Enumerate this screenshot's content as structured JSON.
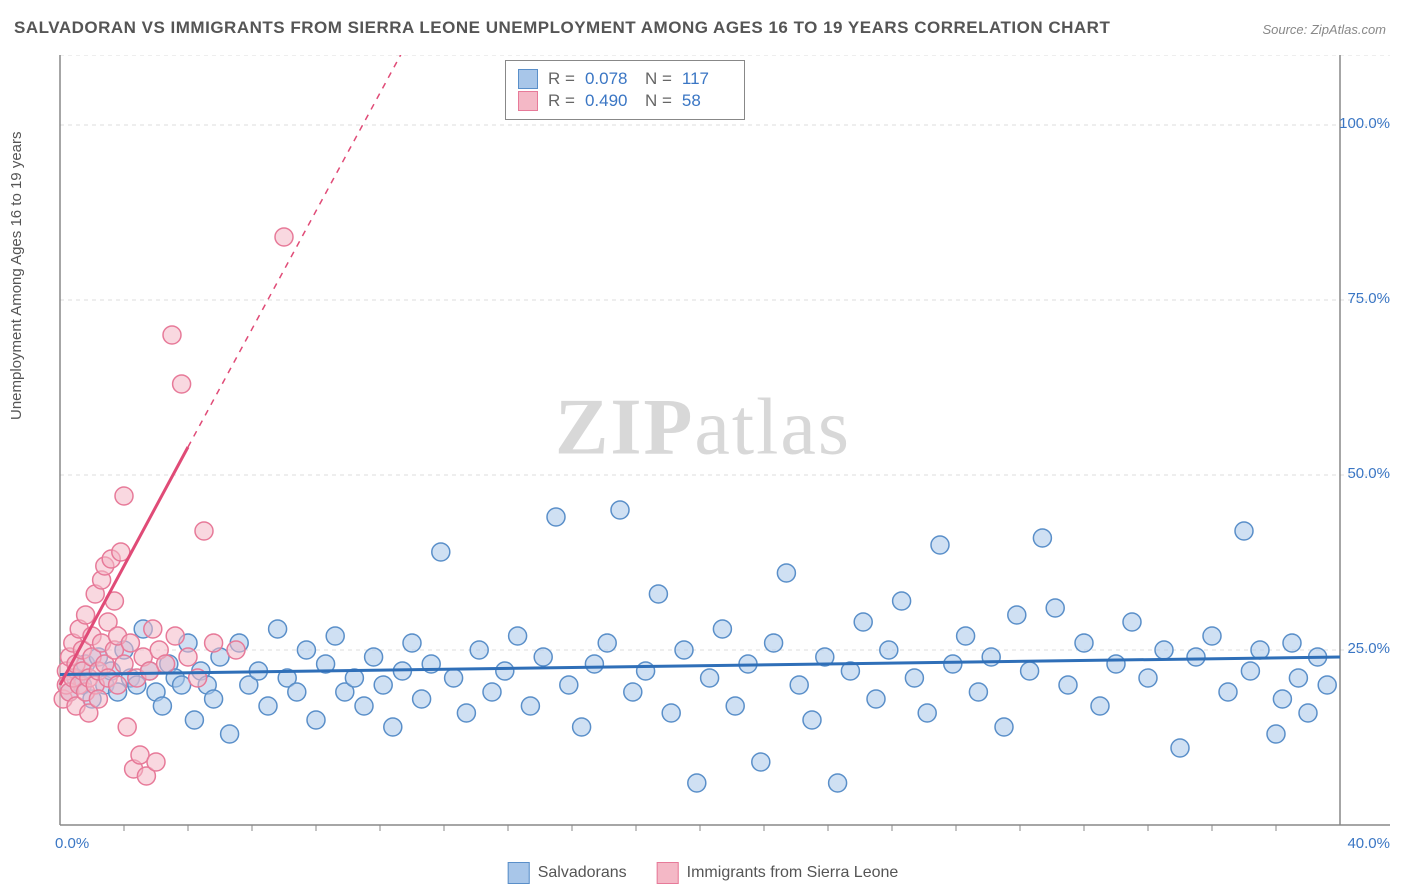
{
  "title": "SALVADORAN VS IMMIGRANTS FROM SIERRA LEONE UNEMPLOYMENT AMONG AGES 16 TO 19 YEARS CORRELATION CHART",
  "source": "Source: ZipAtlas.com",
  "watermark_a": "ZIP",
  "watermark_b": "atlas",
  "y_axis_label": "Unemployment Among Ages 16 to 19 years",
  "chart": {
    "type": "scatter",
    "background_color": "#ffffff",
    "grid_color": "#dddddd",
    "axis_color": "#888888",
    "xlim": [
      0,
      40
    ],
    "ylim": [
      0,
      110
    ],
    "x_ticks": [
      {
        "val": 0.0,
        "label": "0.0%"
      },
      {
        "val": 40.0,
        "label": "40.0%"
      }
    ],
    "y_ticks": [
      {
        "val": 25.0,
        "label": "25.0%"
      },
      {
        "val": 50.0,
        "label": "50.0%"
      },
      {
        "val": 75.0,
        "label": "75.0%"
      },
      {
        "val": 100.0,
        "label": "100.0%"
      }
    ],
    "y_gridlines": [
      25.0,
      50.0,
      75.0,
      100.0,
      110.0
    ],
    "marker_radius": 9,
    "marker_stroke_width": 1.5,
    "trend_line_width": 3,
    "series": [
      {
        "name": "Salvadorans",
        "fill": "#a8c6e9",
        "stroke": "#5a8fc9",
        "fill_opacity": 0.55,
        "trend_color": "#2f6fb8",
        "trend_start": {
          "x": 0.0,
          "y": 21.5
        },
        "trend_end": {
          "x": 40.0,
          "y": 24.0
        },
        "R_label": "R =",
        "R_value": "0.078",
        "N_label": "N =",
        "N_value": "117",
        "points": [
          {
            "x": 0.3,
            "y": 19
          },
          {
            "x": 0.5,
            "y": 21
          },
          {
            "x": 0.7,
            "y": 20
          },
          {
            "x": 0.8,
            "y": 23
          },
          {
            "x": 1.0,
            "y": 18
          },
          {
            "x": 1.2,
            "y": 24
          },
          {
            "x": 1.4,
            "y": 20
          },
          {
            "x": 1.6,
            "y": 22
          },
          {
            "x": 1.8,
            "y": 19
          },
          {
            "x": 2.0,
            "y": 25
          },
          {
            "x": 2.2,
            "y": 21
          },
          {
            "x": 2.4,
            "y": 20
          },
          {
            "x": 2.6,
            "y": 28
          },
          {
            "x": 2.8,
            "y": 22
          },
          {
            "x": 3.0,
            "y": 19
          },
          {
            "x": 3.2,
            "y": 17
          },
          {
            "x": 3.4,
            "y": 23
          },
          {
            "x": 3.6,
            "y": 21
          },
          {
            "x": 3.8,
            "y": 20
          },
          {
            "x": 4.0,
            "y": 26
          },
          {
            "x": 4.2,
            "y": 15
          },
          {
            "x": 4.4,
            "y": 22
          },
          {
            "x": 4.6,
            "y": 20
          },
          {
            "x": 4.8,
            "y": 18
          },
          {
            "x": 5.0,
            "y": 24
          },
          {
            "x": 5.3,
            "y": 13
          },
          {
            "x": 5.6,
            "y": 26
          },
          {
            "x": 5.9,
            "y": 20
          },
          {
            "x": 6.2,
            "y": 22
          },
          {
            "x": 6.5,
            "y": 17
          },
          {
            "x": 6.8,
            "y": 28
          },
          {
            "x": 7.1,
            "y": 21
          },
          {
            "x": 7.4,
            "y": 19
          },
          {
            "x": 7.7,
            "y": 25
          },
          {
            "x": 8.0,
            "y": 15
          },
          {
            "x": 8.3,
            "y": 23
          },
          {
            "x": 8.6,
            "y": 27
          },
          {
            "x": 8.9,
            "y": 19
          },
          {
            "x": 9.2,
            "y": 21
          },
          {
            "x": 9.5,
            "y": 17
          },
          {
            "x": 9.8,
            "y": 24
          },
          {
            "x": 10.1,
            "y": 20
          },
          {
            "x": 10.4,
            "y": 14
          },
          {
            "x": 10.7,
            "y": 22
          },
          {
            "x": 11.0,
            "y": 26
          },
          {
            "x": 11.3,
            "y": 18
          },
          {
            "x": 11.6,
            "y": 23
          },
          {
            "x": 11.9,
            "y": 39
          },
          {
            "x": 12.3,
            "y": 21
          },
          {
            "x": 12.7,
            "y": 16
          },
          {
            "x": 13.1,
            "y": 25
          },
          {
            "x": 13.5,
            "y": 19
          },
          {
            "x": 13.9,
            "y": 22
          },
          {
            "x": 14.3,
            "y": 27
          },
          {
            "x": 14.7,
            "y": 17
          },
          {
            "x": 15.1,
            "y": 24
          },
          {
            "x": 15.5,
            "y": 44
          },
          {
            "x": 15.9,
            "y": 20
          },
          {
            "x": 16.3,
            "y": 14
          },
          {
            "x": 16.7,
            "y": 23
          },
          {
            "x": 17.1,
            "y": 26
          },
          {
            "x": 17.5,
            "y": 45
          },
          {
            "x": 17.9,
            "y": 19
          },
          {
            "x": 18.3,
            "y": 22
          },
          {
            "x": 18.7,
            "y": 33
          },
          {
            "x": 19.1,
            "y": 16
          },
          {
            "x": 19.5,
            "y": 25
          },
          {
            "x": 19.9,
            "y": 6
          },
          {
            "x": 20.3,
            "y": 21
          },
          {
            "x": 20.7,
            "y": 28
          },
          {
            "x": 21.1,
            "y": 17
          },
          {
            "x": 21.5,
            "y": 23
          },
          {
            "x": 21.9,
            "y": 9
          },
          {
            "x": 22.3,
            "y": 26
          },
          {
            "x": 22.7,
            "y": 36
          },
          {
            "x": 23.1,
            "y": 20
          },
          {
            "x": 23.5,
            "y": 15
          },
          {
            "x": 23.9,
            "y": 24
          },
          {
            "x": 24.3,
            "y": 6
          },
          {
            "x": 24.7,
            "y": 22
          },
          {
            "x": 25.1,
            "y": 29
          },
          {
            "x": 25.5,
            "y": 18
          },
          {
            "x": 25.9,
            "y": 25
          },
          {
            "x": 26.3,
            "y": 32
          },
          {
            "x": 26.7,
            "y": 21
          },
          {
            "x": 27.1,
            "y": 16
          },
          {
            "x": 27.5,
            "y": 40
          },
          {
            "x": 27.9,
            "y": 23
          },
          {
            "x": 28.3,
            "y": 27
          },
          {
            "x": 28.7,
            "y": 19
          },
          {
            "x": 29.1,
            "y": 24
          },
          {
            "x": 29.5,
            "y": 14
          },
          {
            "x": 29.9,
            "y": 30
          },
          {
            "x": 30.3,
            "y": 22
          },
          {
            "x": 30.7,
            "y": 41
          },
          {
            "x": 31.1,
            "y": 31
          },
          {
            "x": 31.5,
            "y": 20
          },
          {
            "x": 32.0,
            "y": 26
          },
          {
            "x": 32.5,
            "y": 17
          },
          {
            "x": 33.0,
            "y": 23
          },
          {
            "x": 33.5,
            "y": 29
          },
          {
            "x": 34.0,
            "y": 21
          },
          {
            "x": 34.5,
            "y": 25
          },
          {
            "x": 35.0,
            "y": 11
          },
          {
            "x": 35.5,
            "y": 24
          },
          {
            "x": 36.0,
            "y": 27
          },
          {
            "x": 36.5,
            "y": 19
          },
          {
            "x": 37.0,
            "y": 42
          },
          {
            "x": 37.2,
            "y": 22
          },
          {
            "x": 37.5,
            "y": 25
          },
          {
            "x": 38.0,
            "y": 13
          },
          {
            "x": 38.2,
            "y": 18
          },
          {
            "x": 38.5,
            "y": 26
          },
          {
            "x": 38.7,
            "y": 21
          },
          {
            "x": 39.0,
            "y": 16
          },
          {
            "x": 39.3,
            "y": 24
          },
          {
            "x": 39.6,
            "y": 20
          }
        ]
      },
      {
        "name": "Immigrants from Sierra Leone",
        "fill": "#f4b8c6",
        "stroke": "#e77a99",
        "fill_opacity": 0.55,
        "trend_color": "#e04b77",
        "trend_start": {
          "x": 0.0,
          "y": 20.0
        },
        "trend_end_solid": {
          "x": 4.0,
          "y": 54.0
        },
        "trend_end_dash": {
          "x": 11.0,
          "y": 113.0
        },
        "R_label": "R =",
        "R_value": "0.490",
        "N_label": "N =",
        "N_value": "58",
        "points": [
          {
            "x": 0.1,
            "y": 18
          },
          {
            "x": 0.2,
            "y": 22
          },
          {
            "x": 0.2,
            "y": 20
          },
          {
            "x": 0.3,
            "y": 24
          },
          {
            "x": 0.3,
            "y": 19
          },
          {
            "x": 0.4,
            "y": 26
          },
          {
            "x": 0.4,
            "y": 21
          },
          {
            "x": 0.5,
            "y": 17
          },
          {
            "x": 0.5,
            "y": 23
          },
          {
            "x": 0.6,
            "y": 20
          },
          {
            "x": 0.6,
            "y": 28
          },
          {
            "x": 0.7,
            "y": 22
          },
          {
            "x": 0.7,
            "y": 25
          },
          {
            "x": 0.8,
            "y": 19
          },
          {
            "x": 0.8,
            "y": 30
          },
          {
            "x": 0.9,
            "y": 21
          },
          {
            "x": 0.9,
            "y": 16
          },
          {
            "x": 1.0,
            "y": 24
          },
          {
            "x": 1.0,
            "y": 27
          },
          {
            "x": 1.1,
            "y": 20
          },
          {
            "x": 1.1,
            "y": 33
          },
          {
            "x": 1.2,
            "y": 22
          },
          {
            "x": 1.2,
            "y": 18
          },
          {
            "x": 1.3,
            "y": 26
          },
          {
            "x": 1.3,
            "y": 35
          },
          {
            "x": 1.4,
            "y": 23
          },
          {
            "x": 1.4,
            "y": 37
          },
          {
            "x": 1.5,
            "y": 21
          },
          {
            "x": 1.5,
            "y": 29
          },
          {
            "x": 1.6,
            "y": 38
          },
          {
            "x": 1.7,
            "y": 25
          },
          {
            "x": 1.7,
            "y": 32
          },
          {
            "x": 1.8,
            "y": 20
          },
          {
            "x": 1.8,
            "y": 27
          },
          {
            "x": 1.9,
            "y": 39
          },
          {
            "x": 2.0,
            "y": 23
          },
          {
            "x": 2.0,
            "y": 47
          },
          {
            "x": 2.1,
            "y": 14
          },
          {
            "x": 2.2,
            "y": 26
          },
          {
            "x": 2.3,
            "y": 8
          },
          {
            "x": 2.4,
            "y": 21
          },
          {
            "x": 2.5,
            "y": 10
          },
          {
            "x": 2.6,
            "y": 24
          },
          {
            "x": 2.7,
            "y": 7
          },
          {
            "x": 2.8,
            "y": 22
          },
          {
            "x": 2.9,
            "y": 28
          },
          {
            "x": 3.0,
            "y": 9
          },
          {
            "x": 3.1,
            "y": 25
          },
          {
            "x": 3.3,
            "y": 23
          },
          {
            "x": 3.5,
            "y": 70
          },
          {
            "x": 3.6,
            "y": 27
          },
          {
            "x": 3.8,
            "y": 63
          },
          {
            "x": 4.0,
            "y": 24
          },
          {
            "x": 4.3,
            "y": 21
          },
          {
            "x": 4.5,
            "y": 42
          },
          {
            "x": 4.8,
            "y": 26
          },
          {
            "x": 5.5,
            "y": 25
          },
          {
            "x": 7.0,
            "y": 84
          }
        ]
      }
    ]
  },
  "legend": {
    "series1_label": "Salvadorans",
    "series2_label": "Immigrants from Sierra Leone"
  }
}
